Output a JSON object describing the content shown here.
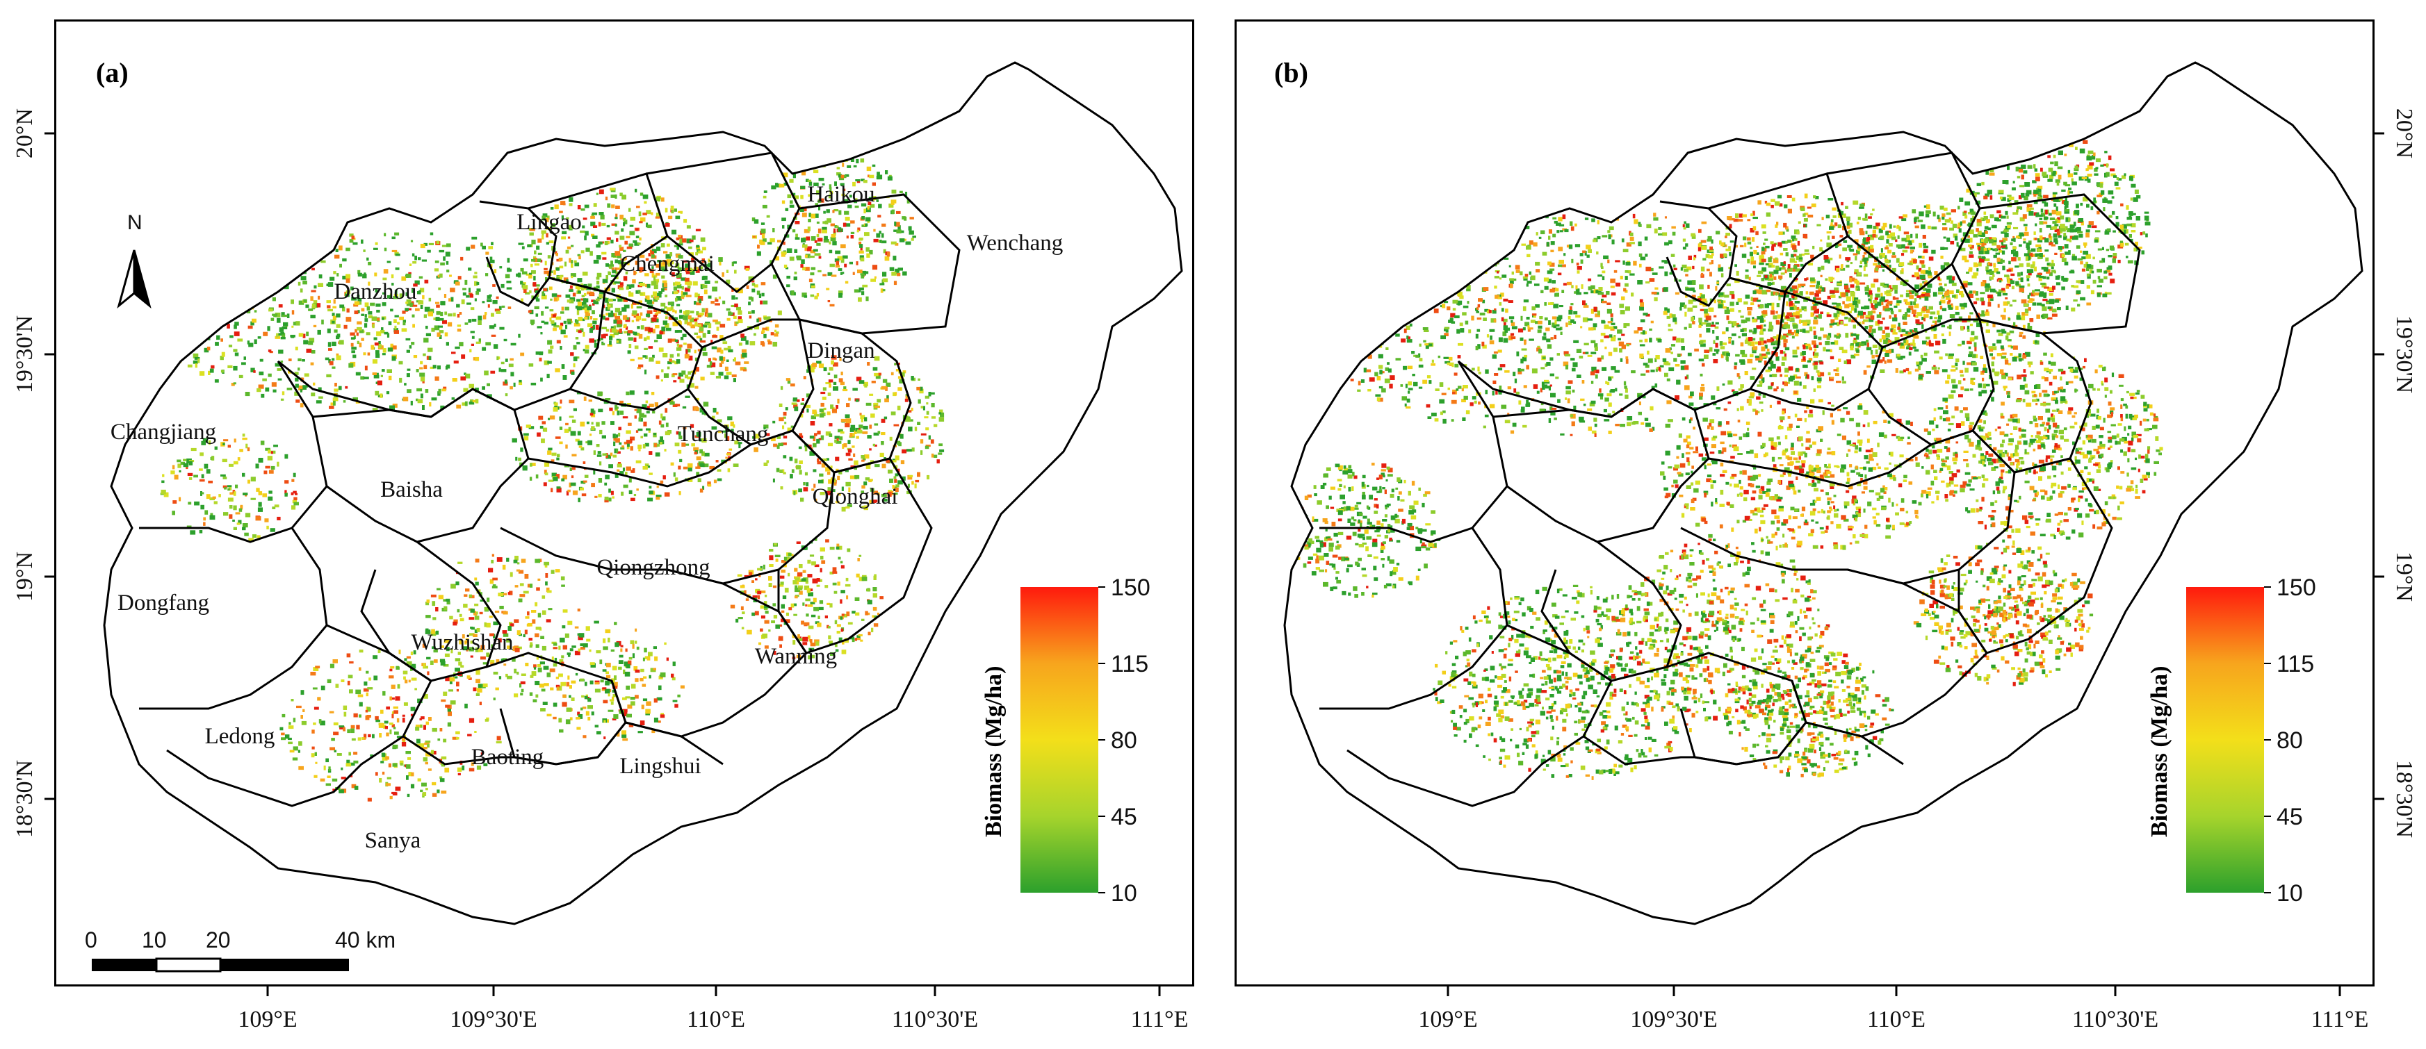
{
  "figure": {
    "panels": [
      {
        "letter": "(a)",
        "counties": [
          "Haikou",
          "Lingao",
          "Chengmai",
          "Wenchang",
          "Danzhou",
          "Dingan",
          "Tunchang",
          "Changjiang",
          "Baisha",
          "Qionghai",
          "Qiongzhong",
          "Dongfang",
          "Wuzhishan",
          "Wanning",
          "Ledong",
          "Baoting",
          "Lingshui",
          "Sanya"
        ],
        "lon_labels": [
          "109°E",
          "109°30'E",
          "110°E",
          "110°30'E",
          "111°E"
        ],
        "lat_labels": [
          "20°N",
          "19°30'N",
          "19°N",
          "18°30'N"
        ]
      },
      {
        "letter": "(b)",
        "lon_labels": [
          "109°E",
          "109°30'E",
          "110°E",
          "110°30'E",
          "111°E"
        ],
        "lat_labels": [
          "20°N",
          "19°30'N",
          "19°N",
          "18°30'N"
        ]
      }
    ],
    "legend": {
      "title": "Biomass (Mg/ha)",
      "ticks": [
        "150",
        "115",
        "80",
        "45",
        "10"
      ],
      "min": 10,
      "max": 150,
      "colors": [
        "#2ca02c",
        "#a6d42c",
        "#f3df1a",
        "#f7a51d",
        "#ff1a0d"
      ]
    },
    "north_arrow": {
      "label": "N"
    },
    "scale_bar": {
      "labels": [
        "0",
        "10",
        "20",
        "40 km"
      ]
    }
  }
}
